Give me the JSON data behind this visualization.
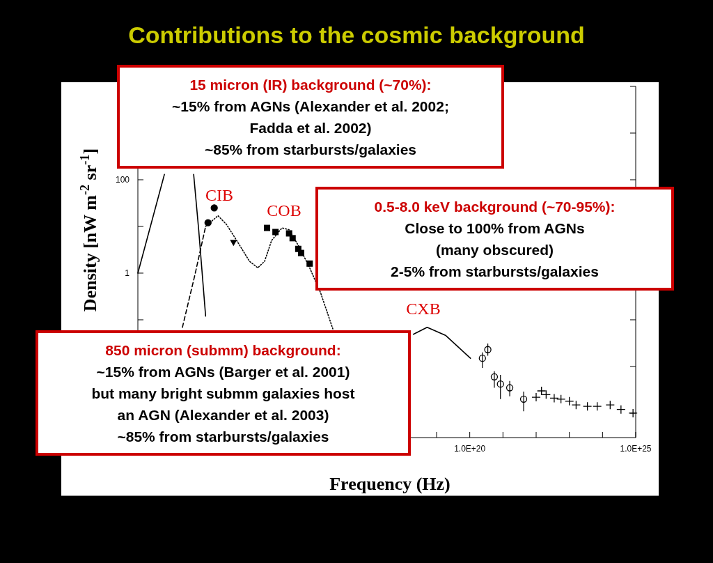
{
  "chart_data": {
    "type": "line",
    "title": "Contributions to the cosmic background",
    "xlabel": "Frequency (Hz)",
    "ylabel": "Density [nW m$^{-2}$ sr$^{-1}$]",
    "log": "xy",
    "grid": false,
    "xlim": [
      10000000000.0,
      1e+25
    ],
    "xticks": [
      {
        "value": 10000000000.0,
        "label": null
      },
      {
        "value": 100000000000.0,
        "label": null
      },
      {
        "value": 1000000000000.0,
        "label": null
      },
      {
        "value": 10000000000000.0,
        "label": null
      },
      {
        "value": 100000000000000.0,
        "label": null
      },
      {
        "value": 1000000000000000.0,
        "label": null
      },
      {
        "value": 1e+16,
        "label": null
      },
      {
        "value": 1e+17,
        "label": null
      },
      {
        "value": 1e+18,
        "label": null
      },
      {
        "value": 1e+19,
        "label": null
      },
      {
        "value": 1e+20,
        "label": "1.0E+20"
      },
      {
        "value": 1e+21,
        "label": null
      },
      {
        "value": 1e+22,
        "label": null
      },
      {
        "value": 1e+23,
        "label": null
      },
      {
        "value": 1e+24,
        "label": null
      },
      {
        "value": 1e+25,
        "label": "1.0E+25"
      }
    ],
    "ylim": [
      0.0003,
      10000
    ],
    "yticks": [
      {
        "value": 0.001,
        "label": null
      },
      {
        "value": 0.01,
        "label": null
      },
      {
        "value": 0.1,
        "label": null
      },
      {
        "value": 1,
        "label": "1"
      },
      {
        "value": 10,
        "label": null
      },
      {
        "value": 100,
        "label": "100"
      },
      {
        "value": 1000,
        "label": null
      },
      {
        "value": 10000,
        "label": null
      }
    ],
    "series": [
      {
        "color": "#000000",
        "line_style": "solid",
        "x": [
          10000000000.0,
          63000000000.0,
          200000000000.0,
          480000000000.0,
          680000000000.0,
          1100000000000.0
        ],
        "values": [
          1,
          130,
          null,
          130,
          8.5,
          0.12
        ]
      },
      {
        "color": "#000000",
        "line_style": "dashed",
        "x": [
          220000000000.0,
          520000000000.0,
          1100000000000.0
        ],
        "values": [
          0.069,
          0.9,
          10
        ]
      },
      {
        "color": "#000000",
        "line_style": "dotted",
        "x": [
          1100000000000.0,
          2600000000000.0,
          4700000000000.0,
          9500000000000.0,
          23000000000000.0,
          41000000000000.0,
          66000000000000.0,
          107000000000000.0,
          220000000000000.0,
          360000000000000.0,
          750000000000000.0,
          1500000000000000.0,
          3200000000000000.0,
          7600000000000000.0
        ],
        "values": [
          10,
          17,
          11,
          5,
          1.8,
          1.3,
          1.8,
          5,
          9.3,
          8.5,
          3.5,
          1.3,
          0.38,
          0.062
        ]
      },
      {
        "color": "#000000",
        "line_style": "solid",
        "x": [
          2e+18,
          5.2e+18,
          1.9e+19,
          1.05e+20
        ],
        "values": [
          0.049,
          0.069,
          0.046,
          0.015
        ]
      },
      {
        "type": "scatter",
        "color": "#000000",
        "marker": "circle",
        "x": [
          1300000000000.0,
          2000000000000.0
        ],
        "values": [
          12,
          25
        ]
      },
      {
        "type": "scatter",
        "color": "#000000",
        "marker": "triangle",
        "x": [
          7600000000000.0
        ],
        "values": [
          4.5
        ]
      },
      {
        "type": "scatter",
        "color": "#000000",
        "marker": "square",
        "x": [
          78000000000000.0,
          140000000000000.0,
          360000000000000.0,
          460000000000000.0,
          680000000000000.0,
          830000000000000.0,
          1500000000000000.0
        ],
        "values": [
          9.3,
          7.6,
          7.1,
          5.6,
          3.3,
          2.7,
          1.6
        ]
      },
      {
        "type": "scatter",
        "color": "#000000",
        "marker": "circle",
        "x": [
          2.4e+20,
          3.5e+20,
          5.5e+20,
          8.4e+20,
          1.6e+21,
          4.2e+21
        ],
        "values": [
          0.015,
          0.023,
          0.006,
          0.0042,
          0.0035,
          0.002
        ],
        "errors": [
          [
            0.0093,
            0.02
          ],
          [
            0.017,
            0.031
          ],
          [
            0.0035,
            0.0079
          ],
          [
            0.002,
            0.0066
          ],
          [
            0.0023,
            0.0049
          ],
          [
            0.0011,
            0.0029
          ]
        ]
      },
      {
        "type": "scatter",
        "color": "#000000",
        "marker": "cross",
        "x": [
          1e+22,
          1.45e+22,
          2e+22,
          3.5e+22,
          5.6e+22,
          1e+23,
          1.6e+23,
          3.5e+23,
          6.9e+23,
          1.7e+24,
          3.6e+24,
          8.3e+24
        ],
        "values": [
          0.0022,
          0.003,
          0.0025,
          0.0021,
          0.002,
          0.0018,
          0.0015,
          0.0014,
          0.0014,
          0.0015,
          0.0012,
          0.001
        ]
      }
    ],
    "annotations": [
      "CIB",
      "COB",
      "CXB",
      "15 micron (IR) background (~70%):\n~15% from AGNs (Alexander et al. 2002;\nFadda et al. 2002)\n~85% from starbursts/galaxies",
      "0.5-8.0 keV background (~70-95%):\nClose to 100% from AGNs\n(many obscured)\n2-5% from starbursts/galaxies",
      "850 micron (submm) background:\n~15% from AGNs (Barger et al. 2001)\nbut many bright submm galaxies host\nan AGN (Alexander et al. 2003)\n~85% from starbursts/galaxies"
    ]
  }
}
